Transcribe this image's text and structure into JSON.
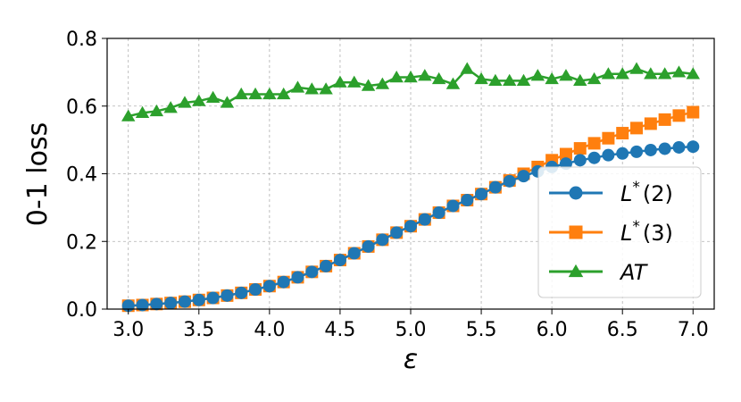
{
  "chart_data": {
    "type": "line",
    "title": "",
    "xlabel": "ε",
    "ylabel": "0-1 loss",
    "xlim": [
      2.85,
      7.15
    ],
    "ylim": [
      0.0,
      0.8
    ],
    "xticks": [
      3.0,
      3.5,
      4.0,
      4.5,
      5.0,
      5.5,
      6.0,
      6.5,
      7.0
    ],
    "xtick_labels": [
      "3.0",
      "3.5",
      "4.0",
      "4.5",
      "5.0",
      "5.5",
      "6.0",
      "6.5",
      "7.0"
    ],
    "yticks": [
      0.0,
      0.2,
      0.4,
      0.6,
      0.8
    ],
    "ytick_labels": [
      "0.0",
      "0.2",
      "0.4",
      "0.6",
      "0.8"
    ],
    "grid": true,
    "legend_position": "lower-right",
    "x": [
      3.0,
      3.1,
      3.2,
      3.3,
      3.4,
      3.5,
      3.6,
      3.7,
      3.8,
      3.9,
      4.0,
      4.1,
      4.2,
      4.3,
      4.4,
      4.5,
      4.6,
      4.7,
      4.8,
      4.9,
      5.0,
      5.1,
      5.2,
      5.3,
      5.4,
      5.5,
      5.6,
      5.7,
      5.8,
      5.9,
      6.0,
      6.1,
      6.2,
      6.3,
      6.4,
      6.5,
      6.6,
      6.7,
      6.8,
      6.9,
      7.0
    ],
    "series": [
      {
        "name": "L*(2)",
        "label_main": "L",
        "label_sup": "*",
        "label_rest": "(2)",
        "color": "#1f77b4",
        "marker": "circle",
        "values": [
          0.01,
          0.012,
          0.015,
          0.018,
          0.022,
          0.027,
          0.033,
          0.04,
          0.048,
          0.058,
          0.068,
          0.08,
          0.094,
          0.11,
          0.127,
          0.145,
          0.165,
          0.185,
          0.205,
          0.226,
          0.245,
          0.265,
          0.285,
          0.305,
          0.322,
          0.34,
          0.36,
          0.378,
          0.393,
          0.407,
          0.42,
          0.43,
          0.44,
          0.447,
          0.455,
          0.46,
          0.465,
          0.47,
          0.474,
          0.478,
          0.48
        ]
      },
      {
        "name": "L*(3)",
        "label_main": "L",
        "label_sup": "*",
        "label_rest": "(3)",
        "color": "#ff7f0e",
        "marker": "square",
        "values": [
          0.01,
          0.012,
          0.015,
          0.018,
          0.022,
          0.027,
          0.033,
          0.04,
          0.048,
          0.058,
          0.068,
          0.08,
          0.094,
          0.11,
          0.127,
          0.145,
          0.165,
          0.185,
          0.205,
          0.226,
          0.245,
          0.265,
          0.285,
          0.305,
          0.322,
          0.34,
          0.36,
          0.38,
          0.4,
          0.42,
          0.44,
          0.458,
          0.475,
          0.49,
          0.505,
          0.52,
          0.535,
          0.548,
          0.56,
          0.572,
          0.582
        ]
      },
      {
        "name": "AT",
        "label_main": "AT",
        "label_sup": "",
        "label_rest": "",
        "color": "#2ca02c",
        "marker": "triangle",
        "values": [
          0.57,
          0.58,
          0.585,
          0.595,
          0.61,
          0.615,
          0.625,
          0.61,
          0.635,
          0.635,
          0.635,
          0.635,
          0.655,
          0.65,
          0.65,
          0.67,
          0.67,
          0.66,
          0.665,
          0.685,
          0.685,
          0.69,
          0.68,
          0.665,
          0.71,
          0.68,
          0.675,
          0.675,
          0.675,
          0.69,
          0.68,
          0.69,
          0.675,
          0.68,
          0.695,
          0.695,
          0.71,
          0.695,
          0.695,
          0.7,
          0.695
        ]
      }
    ]
  }
}
